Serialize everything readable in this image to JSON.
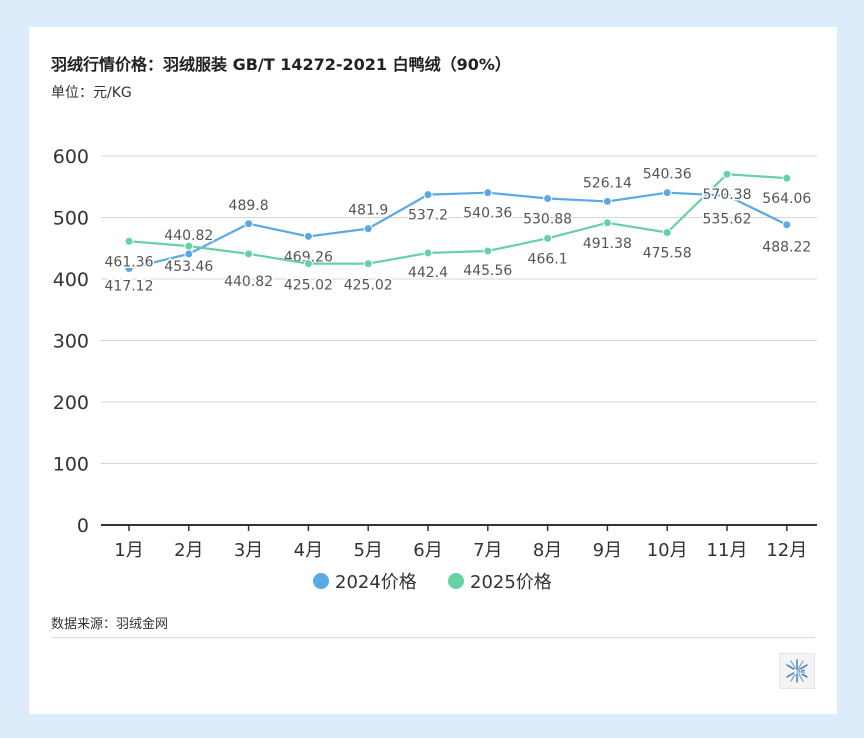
{
  "title": "羽绒行情价格：羽绒服装 GB/T 14272-2021 白鸭绒（90%）",
  "unit": "单位：元/KG",
  "source": "数据来源：羽绒金网",
  "logo_icon": "snowflake-logo-icon",
  "colors": {
    "series2024": "#5aa9e6",
    "series2025": "#66d1a3",
    "background": "#dcecfb"
  },
  "chart_data": {
    "type": "line",
    "title": "羽绒行情价格：羽绒服装 GB/T 14272-2021 白鸭绒（90%）",
    "ylabel": "单位：元/KG",
    "xlabel": "",
    "ylim": [
      0,
      600
    ],
    "yticks": [
      "0",
      "100",
      "200",
      "300",
      "400",
      "500",
      "600"
    ],
    "grid": true,
    "legend_position": "bottom-center",
    "categories": [
      "1月",
      "2月",
      "3月",
      "4月",
      "5月",
      "6月",
      "7月",
      "8月",
      "9月",
      "10月",
      "11月",
      "12月"
    ],
    "series": [
      {
        "name": "2024价格",
        "values": [
          417.12,
          440.82,
          489.8,
          469.26,
          481.9,
          537.2,
          540.36,
          530.88,
          526.14,
          540.36,
          535.62,
          488.22
        ],
        "labels": [
          "417.12",
          "440.82",
          "489.8",
          "469.26",
          "481.9",
          "537.2",
          "540.36",
          "530.88",
          "526.14",
          "540.36",
          "535.62",
          "488.22"
        ]
      },
      {
        "name": "2025价格",
        "values": [
          461.36,
          453.46,
          440.82,
          425.02,
          425.02,
          442.4,
          445.56,
          466.1,
          491.38,
          475.58,
          570.38,
          564.06
        ],
        "labels": [
          "461.36",
          "453.46",
          "440.82",
          "425.02",
          "425.02",
          "442.4",
          "445.56",
          "466.1",
          "491.38",
          "475.58",
          "570.38",
          "564.06"
        ]
      }
    ]
  }
}
